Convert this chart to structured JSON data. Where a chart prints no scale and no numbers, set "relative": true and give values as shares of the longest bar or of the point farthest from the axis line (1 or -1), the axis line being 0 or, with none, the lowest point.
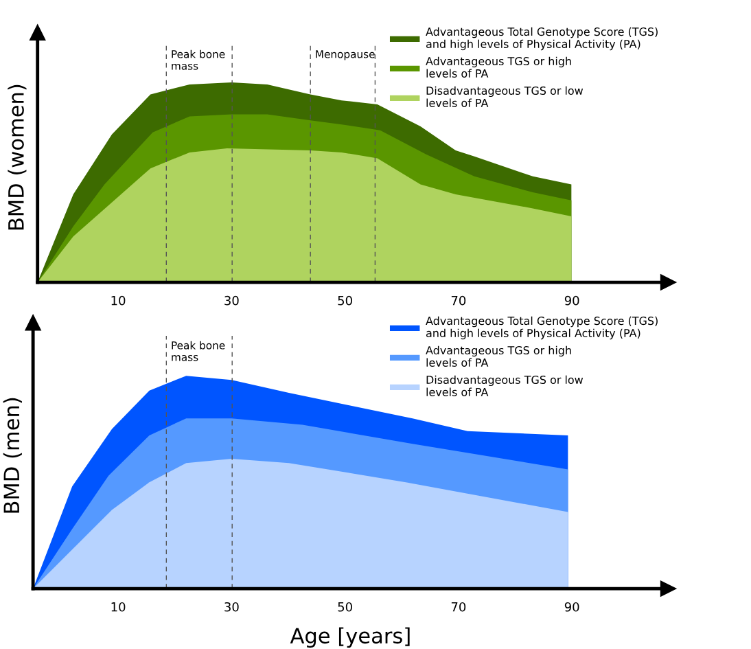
{
  "chart_data": [
    {
      "type": "area",
      "relative": true,
      "ylabel": "BMD (women)",
      "xlim": [
        -4.2,
        107
      ],
      "xticks": [
        10,
        30,
        50,
        70,
        90
      ],
      "grid": false,
      "legend": "top right",
      "series": [
        {
          "name": "Advantageous Total Genotype Score (TGS)\nand high levels of Physical Activity (PA)",
          "color": "#3d6b00",
          "x": [
            -4.2,
            2.1,
            8.9,
            15.7,
            22.6,
            30,
            36.3,
            43.9,
            49.4,
            55.7,
            63.3,
            69.5,
            72.8,
            83.1,
            89.9
          ],
          "values": [
            0,
            0.44,
            0.74,
            0.94,
            0.99,
            1,
            0.99,
            0.94,
            0.91,
            0.89,
            0.78,
            0.66,
            0.63,
            0.53,
            0.49
          ]
        },
        {
          "name": "Advantageous TGS or high\nlevels of PA",
          "color": "#5a9600",
          "x": [
            -4.2,
            2.1,
            7.6,
            16.1,
            22.6,
            30,
            36.3,
            43.9,
            49.4,
            56.2,
            64.3,
            72.8,
            83.1,
            89.9
          ],
          "values": [
            0,
            0.28,
            0.49,
            0.75,
            0.83,
            0.84,
            0.84,
            0.81,
            0.79,
            0.76,
            0.64,
            0.53,
            0.45,
            0.41
          ]
        },
        {
          "name": "Disadvantageous TGS or low\nlevels of PA",
          "color": "#afd35f",
          "x": [
            -4.2,
            2.1,
            8.9,
            15.7,
            22.6,
            29.2,
            43.9,
            49.4,
            55.7,
            63.3,
            69.5,
            83.1,
            89.9
          ],
          "values": [
            0,
            0.23,
            0.4,
            0.57,
            0.65,
            0.67,
            0.66,
            0.65,
            0.62,
            0.49,
            0.44,
            0.37,
            0.33
          ]
        }
      ],
      "ref_lines": [
        {
          "axis": "x",
          "value": 18.5,
          "line_style": "dashed"
        },
        {
          "axis": "x",
          "value": 30.1,
          "line_style": "dashed"
        },
        {
          "axis": "x",
          "value": 43.9,
          "line_style": "dashed"
        },
        {
          "axis": "x",
          "value": 55.3,
          "line_style": "dashed"
        }
      ],
      "annotations": [
        "Peak bone\nmass",
        "Menopause"
      ]
    },
    {
      "type": "area",
      "relative": true,
      "ylabel": "BMD (men)",
      "xlabel": "Age [years]",
      "xlim": [
        -5,
        107
      ],
      "xticks": [
        10,
        30,
        50,
        70,
        90
      ],
      "grid": false,
      "legend": "top right",
      "series": [
        {
          "name": "Advantageous Total Genotype Score (TGS)\nand high levels of Physical Activity (PA)",
          "color": "#0055ff",
          "x": [
            -5,
            1.9,
            8.9,
            15.5,
            22,
            30,
            40.1,
            50.9,
            61.9,
            71.6,
            89.3
          ],
          "values": [
            0,
            0.48,
            0.75,
            0.93,
            1,
            0.98,
            0.92,
            0.86,
            0.8,
            0.74,
            0.72
          ]
        },
        {
          "name": "Advantageous TGS or high\nlevels of PA",
          "color": "#5599ff",
          "x": [
            -5,
            1.9,
            8.3,
            15.5,
            22,
            30,
            42.5,
            61.9,
            89.3
          ],
          "values": [
            0,
            0.28,
            0.53,
            0.72,
            0.8,
            0.8,
            0.77,
            0.68,
            0.56
          ]
        },
        {
          "name": "Disadvantageous TGS or low\nlevels of PA",
          "color": "#b7d3ff",
          "x": [
            -5,
            8.9,
            15.5,
            22,
            30,
            40.1,
            60.7,
            89.3
          ],
          "values": [
            0,
            0.37,
            0.5,
            0.59,
            0.61,
            0.59,
            0.5,
            0.36
          ]
        }
      ],
      "ref_lines": [
        {
          "axis": "x",
          "value": 18.5,
          "line_style": "dashed"
        },
        {
          "axis": "x",
          "value": 30.1,
          "line_style": "dashed"
        }
      ],
      "annotations": [
        "Peak bone\nmass"
      ]
    }
  ]
}
